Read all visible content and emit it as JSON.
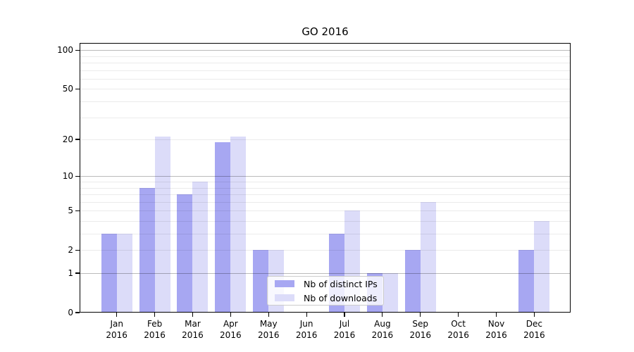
{
  "chart_data": {
    "type": "bar",
    "title": "GO 2016",
    "categories": [
      "Jan",
      "Feb",
      "Mar",
      "Apr",
      "May",
      "Jun",
      "Jul",
      "Aug",
      "Sep",
      "Oct",
      "Nov",
      "Dec"
    ],
    "x_tick_year": "2016",
    "series": [
      {
        "name": "Nb of distinct IPs",
        "color": "#a7a7f2",
        "values": [
          3,
          8,
          7,
          19,
          2,
          0,
          3,
          1,
          2,
          0,
          0,
          2
        ]
      },
      {
        "name": "Nb of downloads",
        "color": "#dcdcf9",
        "values": [
          3,
          21,
          9,
          21,
          2,
          0,
          5,
          1,
          6,
          0,
          0,
          4
        ]
      }
    ],
    "yscale": "log1p",
    "ylim": [
      0,
      114
    ],
    "y_ticks": [
      0,
      1,
      2,
      5,
      10,
      20,
      50,
      100
    ],
    "y_tick_labels": [
      "0",
      "1",
      "2",
      "5",
      "10",
      "20",
      "50",
      "100"
    ],
    "gridlines": {
      "major": [
        1,
        10,
        100
      ],
      "minor": [
        2,
        3,
        4,
        5,
        6,
        7,
        8,
        9,
        20,
        30,
        40,
        50,
        60,
        70,
        80,
        90
      ]
    },
    "legend": {
      "position": "lower center",
      "entries": [
        "Nb of distinct IPs",
        "Nb of downloads"
      ]
    }
  }
}
